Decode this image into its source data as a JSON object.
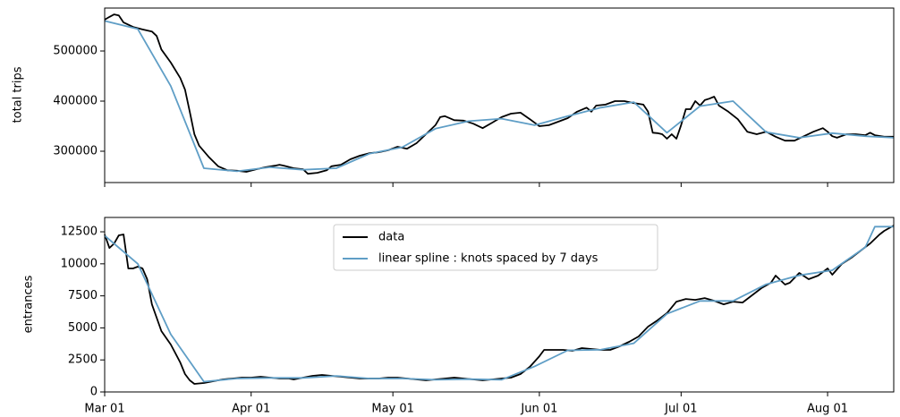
{
  "chart_data": [
    {
      "type": "line",
      "ylabel": "total trips",
      "xlim": [
        0,
        167
      ],
      "ylim": [
        237500,
        585700
      ],
      "yticks": [
        300000,
        400000,
        500000
      ],
      "series": [
        {
          "name": "data",
          "color": "#000000",
          "x": [
            0,
            1,
            2,
            3,
            4,
            6,
            8,
            10,
            11,
            12,
            14,
            16,
            17,
            18,
            19,
            20,
            22,
            24,
            26,
            28,
            30,
            32,
            34,
            36,
            37,
            38,
            40,
            42,
            43,
            45,
            47,
            48,
            50,
            52,
            54,
            56,
            58,
            60,
            62,
            64,
            66,
            68,
            70,
            71,
            72,
            74,
            76,
            78,
            80,
            82,
            84,
            86,
            88,
            90,
            92,
            94,
            96,
            98,
            100,
            102,
            103,
            104,
            106,
            108,
            110,
            112,
            114,
            115,
            116,
            117,
            118,
            119,
            120,
            121,
            122,
            123,
            124,
            125,
            126,
            127,
            128,
            129,
            130,
            132,
            134,
            136,
            138,
            140,
            142,
            144,
            146,
            148,
            150,
            152,
            153,
            154,
            155,
            157,
            159,
            161,
            162,
            163,
            165,
            167
          ],
          "values": [
            562500,
            568000,
            573000,
            571000,
            557000,
            548000,
            543000,
            539000,
            530000,
            503000,
            477000,
            446000,
            423000,
            379000,
            334000,
            311000,
            289000,
            270000,
            262000,
            261000,
            259000,
            264000,
            268000,
            271000,
            273000,
            271000,
            266000,
            264000,
            255000,
            257000,
            262000,
            270000,
            273000,
            284000,
            291000,
            296000,
            298000,
            302000,
            309000,
            305000,
            316000,
            334000,
            352000,
            368000,
            370000,
            362000,
            361000,
            355000,
            346000,
            357000,
            368000,
            375000,
            377000,
            364000,
            350000,
            352000,
            359000,
            366000,
            379000,
            387000,
            379000,
            391000,
            393000,
            400000,
            400000,
            396000,
            393000,
            379000,
            337000,
            336000,
            334000,
            325000,
            334000,
            325000,
            352000,
            384000,
            384000,
            400000,
            391000,
            402000,
            405000,
            409000,
            391000,
            379000,
            364000,
            339000,
            334000,
            339000,
            329000,
            321000,
            321000,
            330000,
            339000,
            346000,
            339000,
            330000,
            327000,
            334000,
            334000,
            332000,
            337000,
            332000,
            329000,
            329000
          ]
        },
        {
          "name": "linear spline : knots spaced by 7 days",
          "color": "#5f9ec6",
          "x": [
            0,
            7,
            14,
            21,
            28,
            35,
            42,
            49,
            56,
            63,
            70,
            77,
            84,
            91,
            98,
            105,
            112,
            119,
            126,
            133,
            140,
            147,
            154,
            161,
            167
          ],
          "values": [
            560000,
            544000,
            430000,
            266000,
            260000,
            268000,
            263000,
            266000,
            295000,
            308000,
            345000,
            360000,
            365000,
            352000,
            370000,
            387000,
            398000,
            337000,
            390000,
            400000,
            338000,
            327000,
            336000,
            330000,
            327000
          ]
        }
      ]
    },
    {
      "type": "line",
      "ylabel": "entrances",
      "xlim": [
        0,
        167
      ],
      "ylim": [
        0,
        13620
      ],
      "yticks": [
        0,
        2500,
        5000,
        7500,
        10000,
        12500
      ],
      "xticks": [
        {
          "value": 0,
          "label": "Mar 01"
        },
        {
          "value": 31,
          "label": "Apr 01"
        },
        {
          "value": 61,
          "label": "May 01"
        },
        {
          "value": 92,
          "label": "Jun 01"
        },
        {
          "value": 122,
          "label": "Jul 01"
        },
        {
          "value": 153,
          "label": "Aug 01"
        }
      ],
      "legend": "upper center",
      "series": [
        {
          "name": "data",
          "color": "#000000",
          "x": [
            0,
            1,
            2,
            3,
            4,
            5,
            6,
            7,
            8,
            9,
            10,
            11,
            12,
            14,
            16,
            17,
            18,
            19,
            21,
            23,
            25,
            27,
            29,
            31,
            33,
            35,
            37,
            39,
            40,
            42,
            44,
            46,
            48,
            50,
            52,
            54,
            56,
            58,
            60,
            62,
            64,
            66,
            68,
            70,
            72,
            74,
            76,
            78,
            80,
            82,
            84,
            86,
            88,
            90,
            92,
            93,
            95,
            97,
            99,
            101,
            103,
            105,
            107,
            109,
            111,
            113,
            115,
            117,
            119,
            121,
            123,
            125,
            127,
            129,
            131,
            133,
            135,
            137,
            139,
            141,
            142,
            144,
            145,
            147,
            149,
            151,
            153,
            154,
            156,
            158,
            160,
            162,
            164,
            165,
            167
          ],
          "values": [
            12290,
            11240,
            11590,
            12220,
            12290,
            9640,
            9640,
            9780,
            9640,
            8800,
            6840,
            5800,
            4750,
            3700,
            2300,
            1400,
            910,
            630,
            700,
            840,
            980,
            1050,
            1120,
            1120,
            1190,
            1120,
            1050,
            1050,
            980,
            1120,
            1260,
            1330,
            1260,
            1190,
            1120,
            1050,
            1050,
            1050,
            1120,
            1120,
            1050,
            980,
            910,
            980,
            1050,
            1120,
            1050,
            980,
            910,
            980,
            1050,
            1120,
            1400,
            1960,
            2790,
            3280,
            3280,
            3280,
            3210,
            3420,
            3350,
            3280,
            3280,
            3560,
            3910,
            4330,
            5100,
            5590,
            6150,
            7050,
            7260,
            7190,
            7330,
            7120,
            6840,
            7050,
            6980,
            7540,
            8100,
            8520,
            9080,
            8380,
            8520,
            9290,
            8800,
            9080,
            9640,
            9150,
            9990,
            10470,
            11030,
            11590,
            12290,
            12570,
            12990
          ]
        },
        {
          "name": "linear spline : knots spaced by 7 days",
          "color": "#5f9ec6",
          "x": [
            0,
            7,
            14,
            21,
            28,
            35,
            42,
            49,
            56,
            63,
            70,
            77,
            84,
            91,
            98,
            105,
            112,
            119,
            126,
            133,
            140,
            147,
            154,
            161,
            163,
            167
          ],
          "values": [
            12200,
            10000,
            4500,
            800,
            1050,
            1100,
            1100,
            1250,
            1050,
            1050,
            950,
            1000,
            950,
            2000,
            3250,
            3300,
            3800,
            6100,
            7100,
            7100,
            8400,
            9100,
            9500,
            11300,
            12900,
            12900
          ]
        }
      ]
    }
  ]
}
